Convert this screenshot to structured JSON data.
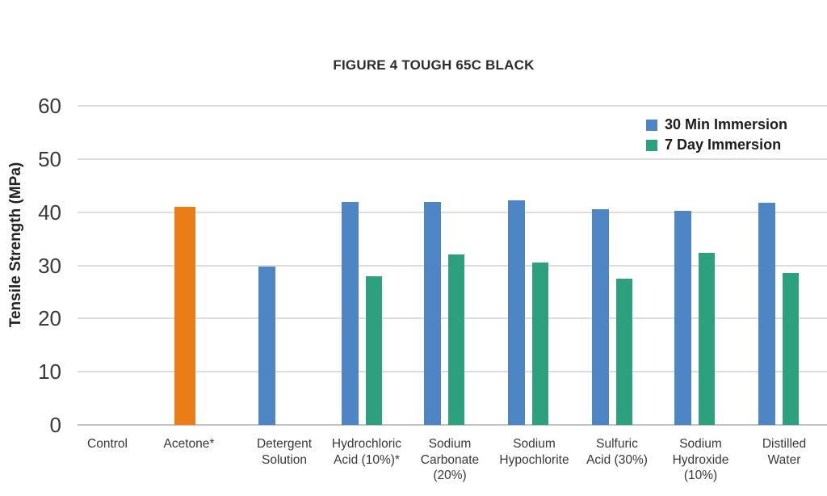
{
  "figure": {
    "title": "FIGURE 4 TOUGH 65C BLACK"
  },
  "y_axis": {
    "label": "Tensile Strength (MPa)",
    "ticks": [
      60,
      50,
      40,
      30,
      20,
      10,
      0
    ]
  },
  "legend": {
    "items": [
      {
        "label": "30 Min Immersion",
        "color": "#4e85c5"
      },
      {
        "label": "7 Day Immersion",
        "color": "#2da17d"
      }
    ]
  },
  "chart_data": {
    "type": "bar",
    "title": "FIGURE 4 TOUGH 65C BLACK",
    "xlabel": "",
    "ylabel": "Tensile Strength (MPa)",
    "ylim": [
      0,
      60
    ],
    "grid": "horizontal",
    "legend_position": "top-right",
    "categories": [
      "Control",
      "Acetone*",
      "Detergent Solution",
      "Hydrochloric Acid (10%)*",
      "Sodium Carbonate (20%)",
      "Sodium Hypochlorite",
      "Sulfuric Acid (30%)",
      "Sodium Hydroxide (10%)",
      "Distilled Water"
    ],
    "category_label_lines": [
      [
        "Control"
      ],
      [
        "Acetone*"
      ],
      [
        "Detergent",
        "Solution"
      ],
      [
        "Hydrochloric",
        "Acid (10%)*"
      ],
      [
        "Sodium",
        "Carbonate",
        "(20%)"
      ],
      [
        "Sodium",
        "Hypochlorite"
      ],
      [
        "Sulfuric",
        "Acid (30%)"
      ],
      [
        "Sodium",
        "Hydroxide",
        "(10%)"
      ],
      [
        "Distilled",
        "Water"
      ]
    ],
    "series": [
      {
        "name": "30 Min Immersion",
        "color": "#4e85c5",
        "values": [
          41.0,
          29.8,
          41.9,
          42.0,
          42.3,
          40.6,
          40.3,
          41.7,
          42.3
        ]
      },
      {
        "name": "7 Day Immersion",
        "color": "#2da17d",
        "values": [
          null,
          null,
          28.0,
          32.0,
          30.6,
          27.5,
          32.3,
          28.5,
          27.4
        ]
      }
    ],
    "control_bar": {
      "category": "Control",
      "series": "30 Min Immersion",
      "color": "#eb7d18"
    }
  },
  "colors": {
    "bar_blue": "#4e85c5",
    "bar_green": "#2da17d",
    "bar_orange": "#eb7d18",
    "gridline": "#dcdcdc",
    "axis_line": "#c4c4c4"
  }
}
